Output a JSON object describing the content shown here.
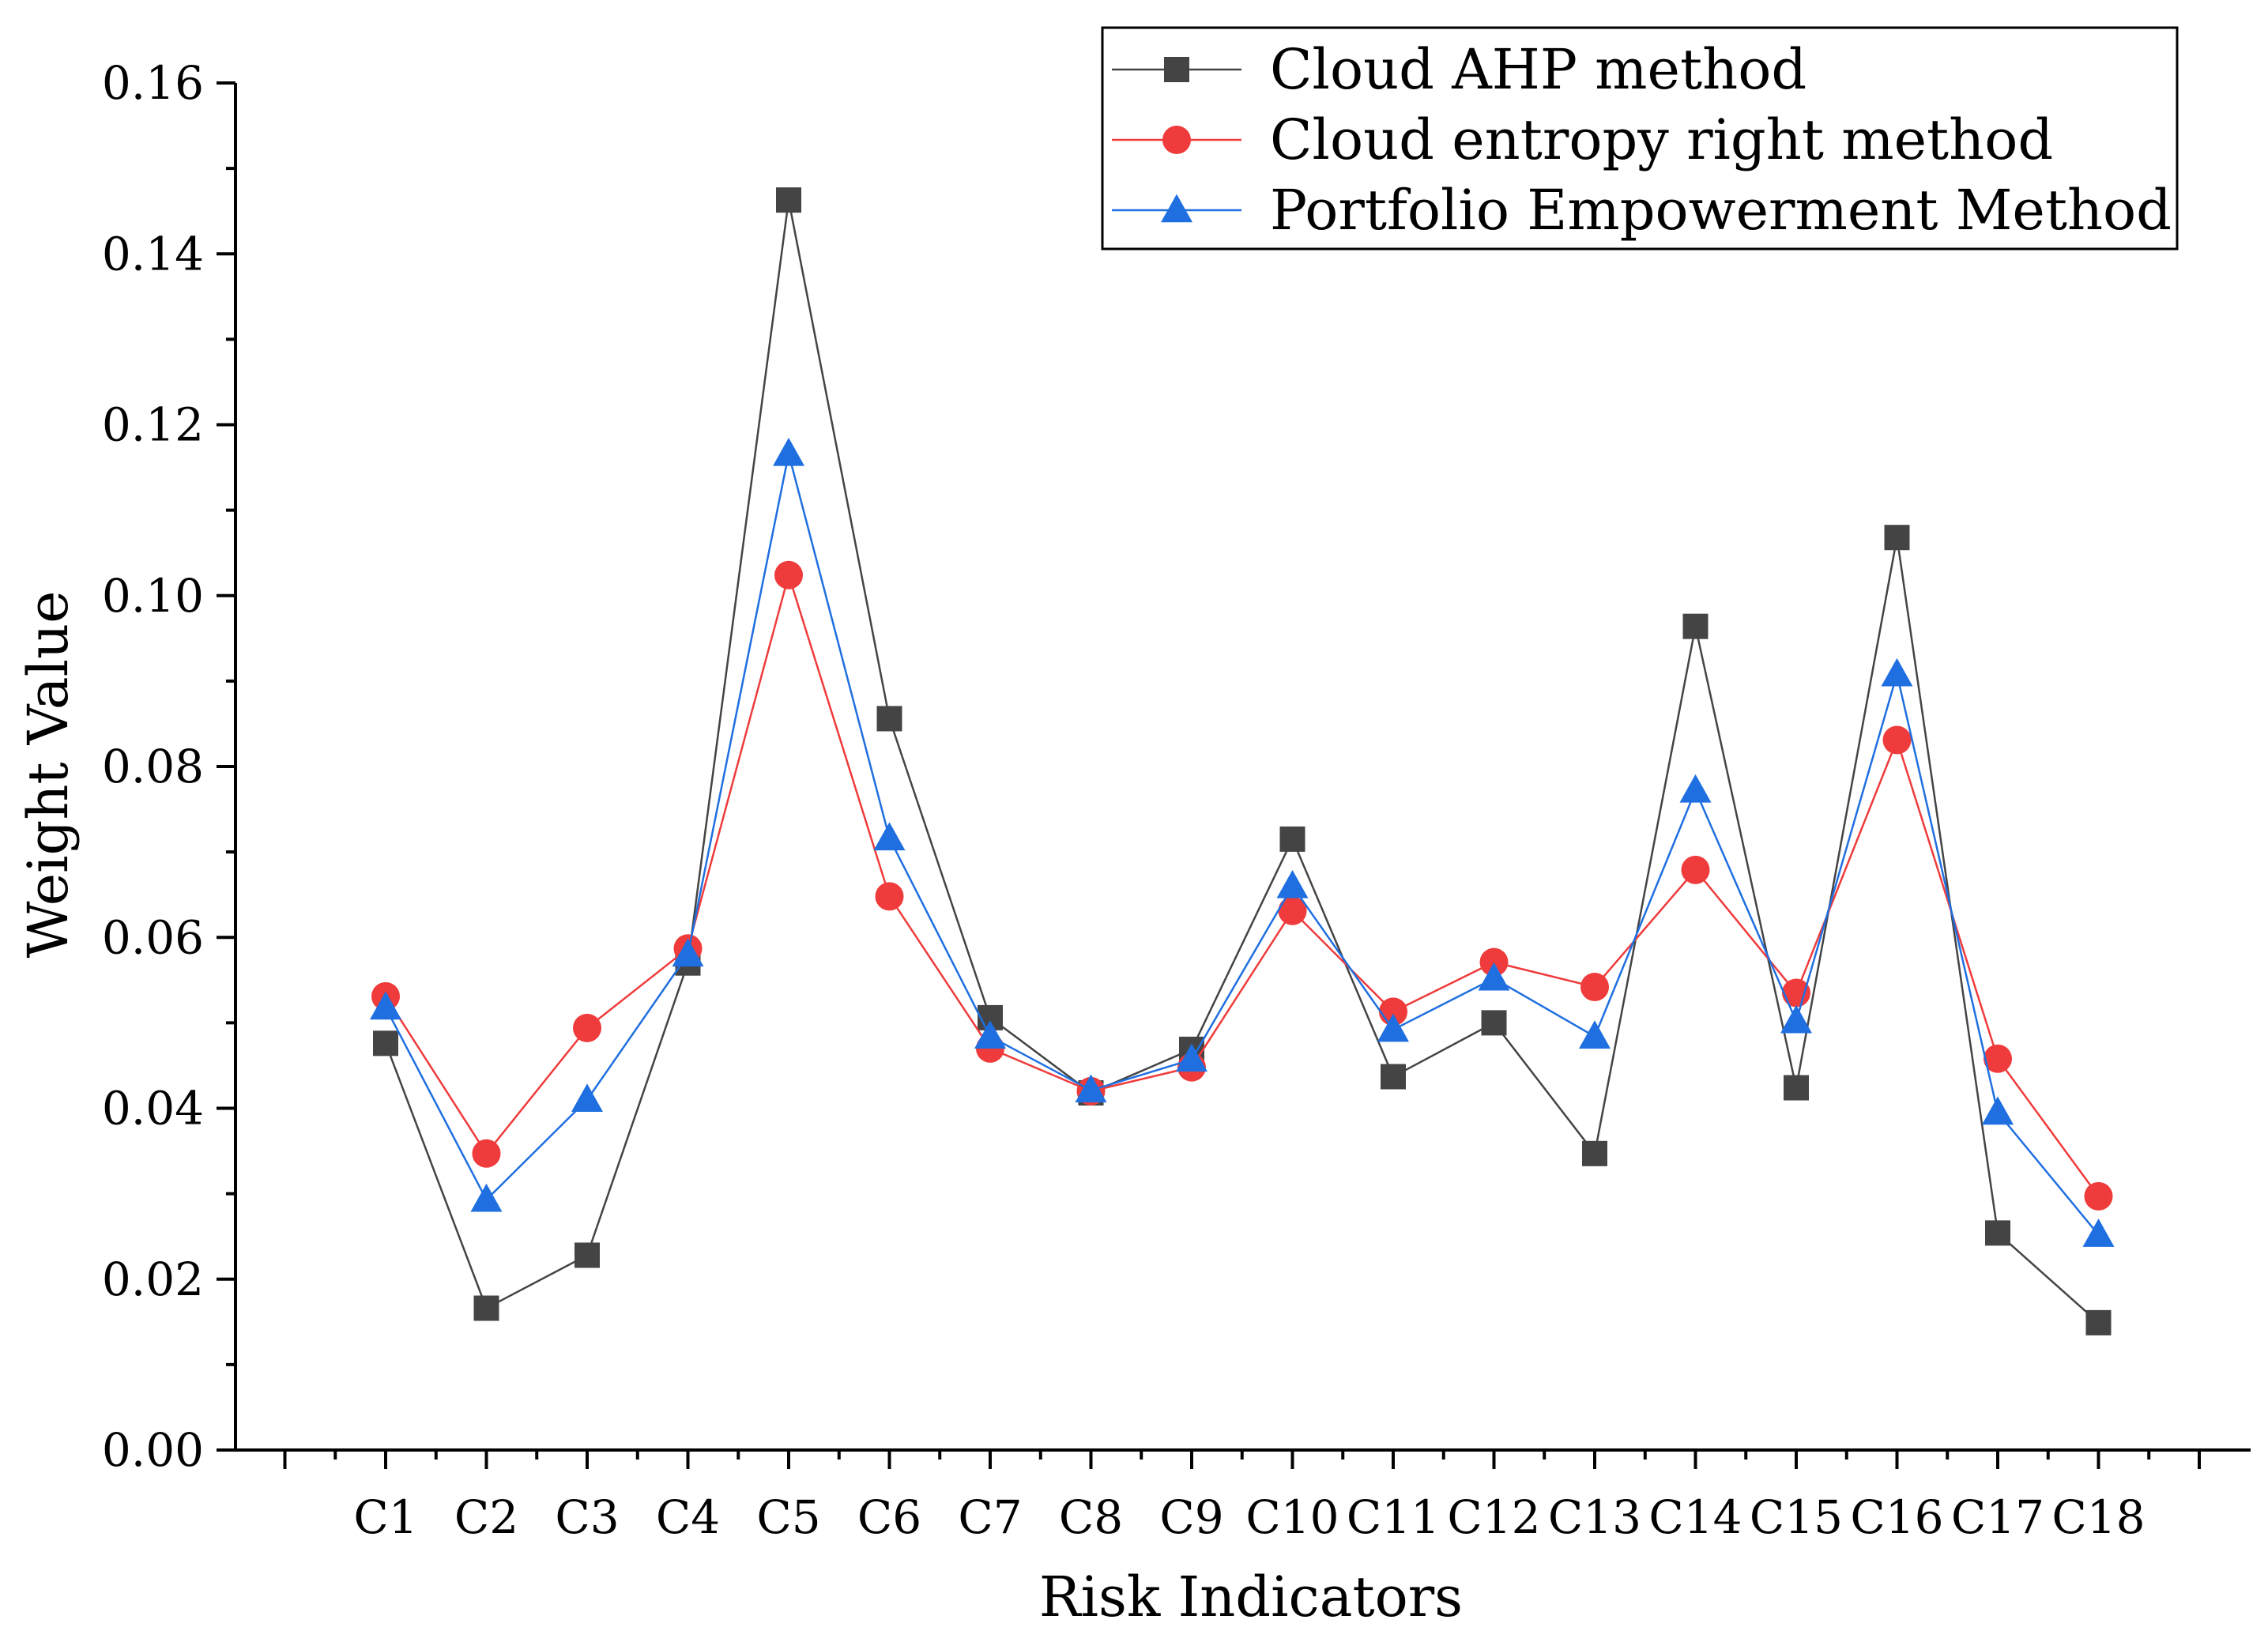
{
  "chart_data": {
    "type": "line",
    "title": "",
    "xlabel": "Risk Indicators",
    "ylabel": "Weight Value",
    "ylim": [
      0,
      0.16
    ],
    "yticks": [
      "0.00",
      "0.02",
      "0.04",
      "0.06",
      "0.08",
      "0.10",
      "0.12",
      "0.14",
      "0.16"
    ],
    "grid": false,
    "legend_position": "top-right",
    "categories": [
      "C1",
      "C2",
      "C3",
      "C4",
      "C5",
      "C6",
      "C7",
      "C8",
      "C9",
      "C10",
      "C11",
      "C12",
      "C13",
      "C14",
      "C15",
      "C16",
      "C17",
      "C18"
    ],
    "series": [
      {
        "name": "Cloud AHP method",
        "marker": "square",
        "color": "#444444",
        "values": [
          0.0476,
          0.0166,
          0.0228,
          0.057,
          0.1463,
          0.0856,
          0.0506,
          0.0418,
          0.0469,
          0.0715,
          0.0437,
          0.05,
          0.0347,
          0.0964,
          0.0424,
          0.1068,
          0.0254,
          0.0149
        ]
      },
      {
        "name": "Cloud entropy right method",
        "marker": "circle",
        "color": "#ef3b3b",
        "values": [
          0.0531,
          0.0347,
          0.0494,
          0.0587,
          0.1024,
          0.0648,
          0.047,
          0.042,
          0.0448,
          0.0631,
          0.0513,
          0.0571,
          0.0542,
          0.0679,
          0.0535,
          0.0831,
          0.0458,
          0.0297
        ]
      },
      {
        "name": "Portfolio Empowerment Method",
        "marker": "triangle",
        "color": "#1f6fe0",
        "values": [
          0.0518,
          0.0293,
          0.041,
          0.058,
          0.1166,
          0.0716,
          0.0484,
          0.0421,
          0.0457,
          0.066,
          0.0492,
          0.0552,
          0.0484,
          0.0772,
          0.0502,
          0.0908,
          0.0395,
          0.0252
        ]
      }
    ]
  }
}
